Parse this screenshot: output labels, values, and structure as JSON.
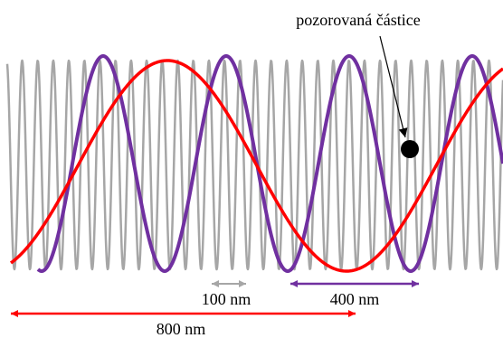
{
  "labels": {
    "particle": "pozorovaná částice",
    "wave_short": "100 nm",
    "wave_medium": "400 nm",
    "wave_long": "800 nm"
  },
  "colors": {
    "wave_short": "#a6a6a6",
    "wave_medium": "#7030a0",
    "wave_long": "#ff0000",
    "particle": "#000000",
    "pointer": "#000000"
  }
}
